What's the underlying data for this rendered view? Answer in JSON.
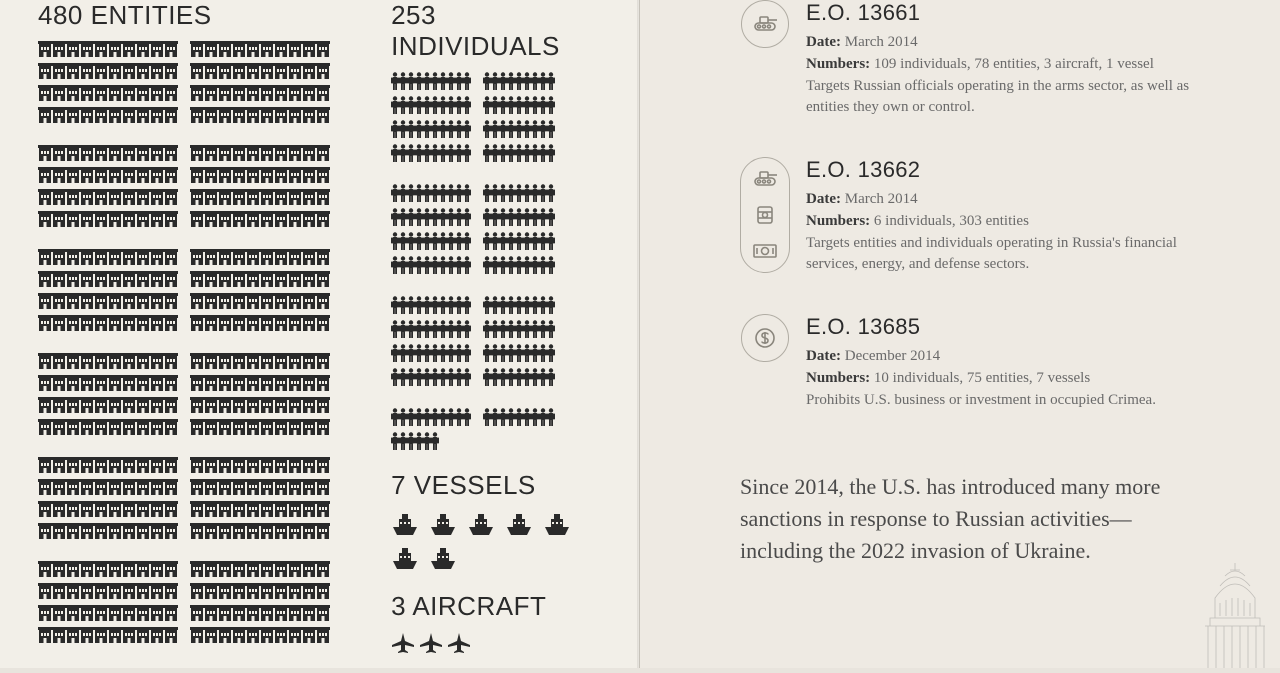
{
  "left": {
    "entities": {
      "title": "480 ENTITIES",
      "count": 480,
      "icons_per_row_group": [
        10,
        10
      ],
      "blocks": [
        4,
        4,
        4,
        4,
        4,
        4
      ],
      "total_rows": 24
    },
    "individuals": {
      "title": "253 INDIVIDUALS",
      "count": 253,
      "icons_per_row_group": [
        10,
        9
      ],
      "blocks": [
        4,
        4,
        4,
        2
      ],
      "last_row_count": 13
    },
    "vessels": {
      "title": "7 VESSELS",
      "count": 7,
      "row1": 5,
      "row2": 2
    },
    "aircraft": {
      "title": "3 AIRCRAFT",
      "count": 3
    }
  },
  "colors": {
    "bg_left": "#f2efe8",
    "bg_right": "#eeeae3",
    "ink": "#2a2a2a",
    "muted": "#6a6a6a",
    "icon_stroke": "#8a867d",
    "icon_border": "#b0aca3"
  },
  "typography": {
    "title_fontsize": 26,
    "eo_title_fontsize": 22,
    "body_fontsize": 15,
    "footnote_fontsize": 22,
    "title_font": "Arial Narrow",
    "body_font": "Georgia"
  },
  "eo_items": [
    {
      "id": "eo-13661",
      "icons": [
        "tank"
      ],
      "title": "E.O. 13661",
      "date_label": "Date:",
      "date": "March 2014",
      "numbers_label": "Numbers:",
      "numbers": "109 individuals, 78 entities, 3 aircraft, 1 vessel",
      "desc": "Targets Russian officials operating in the arms sector, as well as entities they own or control."
    },
    {
      "id": "eo-13662",
      "icons": [
        "tank",
        "oil",
        "money"
      ],
      "title": "E.O. 13662",
      "date_label": "Date:",
      "date": "March 2014",
      "numbers_label": "Numbers:",
      "numbers": "6 individuals, 303 entities",
      "desc": "Targets entities and individuals operating in Russia's financial services, energy, and defense sectors."
    },
    {
      "id": "eo-13685",
      "icons": [
        "dollar"
      ],
      "title": "E.O. 13685",
      "date_label": "Date:",
      "date": "December 2014",
      "numbers_label": "Numbers:",
      "numbers": "10 individuals, 75 entities, 7 vessels",
      "desc": "Prohibits U.S. business or investment in occupied Crimea."
    }
  ],
  "footnote": "Since 2014, the U.S. has introduced many more sanctions in response to Russian activities—including the 2022 invasion of Ukraine."
}
